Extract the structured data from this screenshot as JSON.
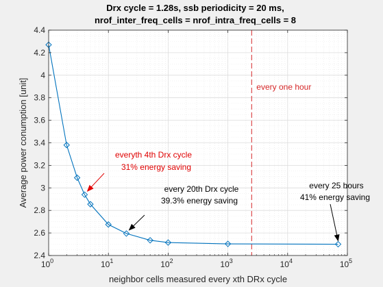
{
  "chart_data": {
    "type": "line",
    "title_line1": "Drx cycle = 1.28s, ssb periodicity = 20 ms,",
    "title_line2": "nrof_inter_freq_cells = nrof_intra_freq_cells = 8",
    "xlabel": "neighbor cells measured every xth DRx cycle",
    "ylabel": "Average power conumption [unit]",
    "xscale": "log",
    "xlim": [
      1,
      100000
    ],
    "ylim": [
      2.4,
      4.4
    ],
    "grid": true,
    "x_ticks": [
      {
        "value": 1,
        "base": "10",
        "exp": "0"
      },
      {
        "value": 10,
        "base": "10",
        "exp": "1"
      },
      {
        "value": 100,
        "base": "10",
        "exp": "2"
      },
      {
        "value": 1000,
        "base": "10",
        "exp": "3"
      },
      {
        "value": 10000,
        "base": "10",
        "exp": "4"
      },
      {
        "value": 100000,
        "base": "10",
        "exp": "5"
      }
    ],
    "y_ticks": [
      "2.4",
      "2.6",
      "2.8",
      "3",
      "3.2",
      "3.4",
      "3.6",
      "3.8",
      "4",
      "4.2",
      "4.4"
    ],
    "series": [
      {
        "color": "#0072bd",
        "marker": "diamond",
        "x": [
          1,
          2,
          3,
          4,
          5,
          10,
          20,
          50,
          100,
          1000,
          70000
        ],
        "y": [
          4.27,
          3.38,
          3.09,
          2.94,
          2.855,
          2.675,
          2.595,
          2.535,
          2.515,
          2.503,
          2.5
        ]
      }
    ],
    "vertical_line": {
      "x": 2500,
      "color": "#d62728",
      "style": "dashed",
      "label": "every one hour"
    },
    "annotations": [
      {
        "lines": [
          "everyth 4th Drx cycle",
          "31% energy saving"
        ],
        "color": "#e00000",
        "arrow_to": [
          4,
          2.94
        ]
      },
      {
        "lines": [
          "every 20th Drx cycle",
          "39.3% energy saving"
        ],
        "color": "#000000",
        "arrow_to": [
          20,
          2.595
        ]
      },
      {
        "lines": [
          "every 25 hours",
          "41% energy saving"
        ],
        "color": "#000000",
        "arrow_to": [
          70000,
          2.5
        ]
      }
    ]
  }
}
